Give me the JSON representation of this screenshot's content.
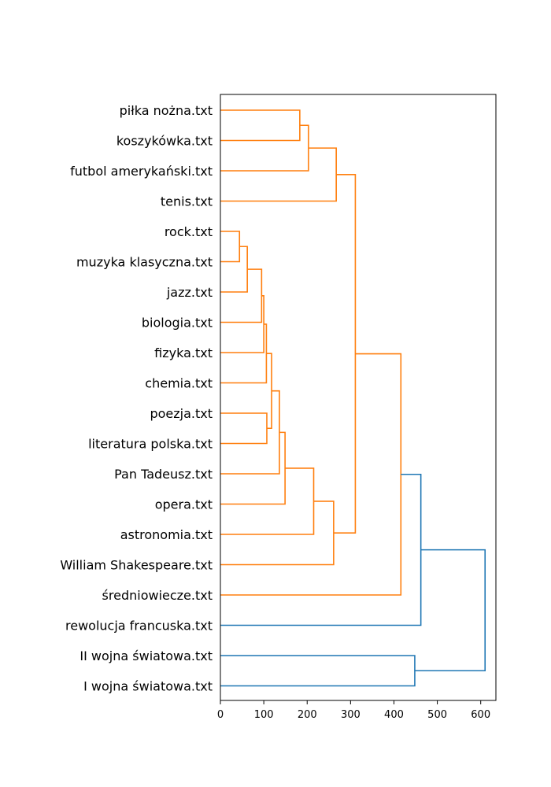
{
  "chart_data": {
    "type": "dendrogram",
    "orientation": "left",
    "xlim": [
      0,
      635
    ],
    "xticks": [
      0,
      100,
      200,
      300,
      400,
      500,
      600
    ],
    "grid": false,
    "colors": {
      "cluster": "#ff7f0e",
      "above_threshold": "#1f77b4"
    },
    "leaves": [
      "piłka nożna.txt",
      "koszykówka.txt",
      "futbol amerykański.txt",
      "tenis.txt",
      "rock.txt",
      "muzyka klasyczna.txt",
      "jazz.txt",
      "biologia.txt",
      "fizyka.txt",
      "chemia.txt",
      "poezja.txt",
      "literatura polska.txt",
      "Pan Tadeusz.txt",
      "opera.txt",
      "astronomia.txt",
      "William Shakespeare.txt",
      "średniowiecze.txt",
      "rewolucja francuska.txt",
      "II wojna światowa.txt",
      "I wojna światowa.txt"
    ],
    "merges": [
      {
        "id": "m1",
        "children": [
          "L0",
          "L1"
        ],
        "height": 183,
        "color": "cluster"
      },
      {
        "id": "m2",
        "children": [
          "m1",
          "L2"
        ],
        "height": 203,
        "color": "cluster"
      },
      {
        "id": "m3",
        "children": [
          "m2",
          "L3"
        ],
        "height": 267,
        "color": "cluster"
      },
      {
        "id": "m4",
        "children": [
          "L4",
          "L5"
        ],
        "height": 44,
        "color": "cluster"
      },
      {
        "id": "m5",
        "children": [
          "m4",
          "L6"
        ],
        "height": 62,
        "color": "cluster"
      },
      {
        "id": "m6",
        "children": [
          "m5",
          "L7"
        ],
        "height": 95,
        "color": "cluster"
      },
      {
        "id": "m7",
        "children": [
          "m6",
          "L8"
        ],
        "height": 100,
        "color": "cluster"
      },
      {
        "id": "m8",
        "children": [
          "m7",
          "L9"
        ],
        "height": 106,
        "color": "cluster"
      },
      {
        "id": "m9",
        "children": [
          "L10",
          "L11"
        ],
        "height": 107,
        "color": "cluster"
      },
      {
        "id": "m10",
        "children": [
          "m8",
          "m9"
        ],
        "height": 118,
        "color": "cluster"
      },
      {
        "id": "m11",
        "children": [
          "m10",
          "L12"
        ],
        "height": 136,
        "color": "cluster"
      },
      {
        "id": "m12",
        "children": [
          "m11",
          "L13"
        ],
        "height": 149,
        "color": "cluster"
      },
      {
        "id": "m13",
        "children": [
          "m12",
          "L14"
        ],
        "height": 215,
        "color": "cluster"
      },
      {
        "id": "m14",
        "children": [
          "m13",
          "L15"
        ],
        "height": 261,
        "color": "cluster"
      },
      {
        "id": "m15",
        "children": [
          "m3",
          "m14"
        ],
        "height": 311,
        "color": "cluster"
      },
      {
        "id": "m16",
        "children": [
          "m15",
          "L16"
        ],
        "height": 416,
        "color": "cluster"
      },
      {
        "id": "m17",
        "children": [
          "m16",
          "L17"
        ],
        "height": 462,
        "color": "above_threshold"
      },
      {
        "id": "m18",
        "children": [
          "L18",
          "L19"
        ],
        "height": 448,
        "color": "above_threshold"
      },
      {
        "id": "m19",
        "children": [
          "m17",
          "m18"
        ],
        "height": 610,
        "color": "above_threshold"
      }
    ]
  }
}
